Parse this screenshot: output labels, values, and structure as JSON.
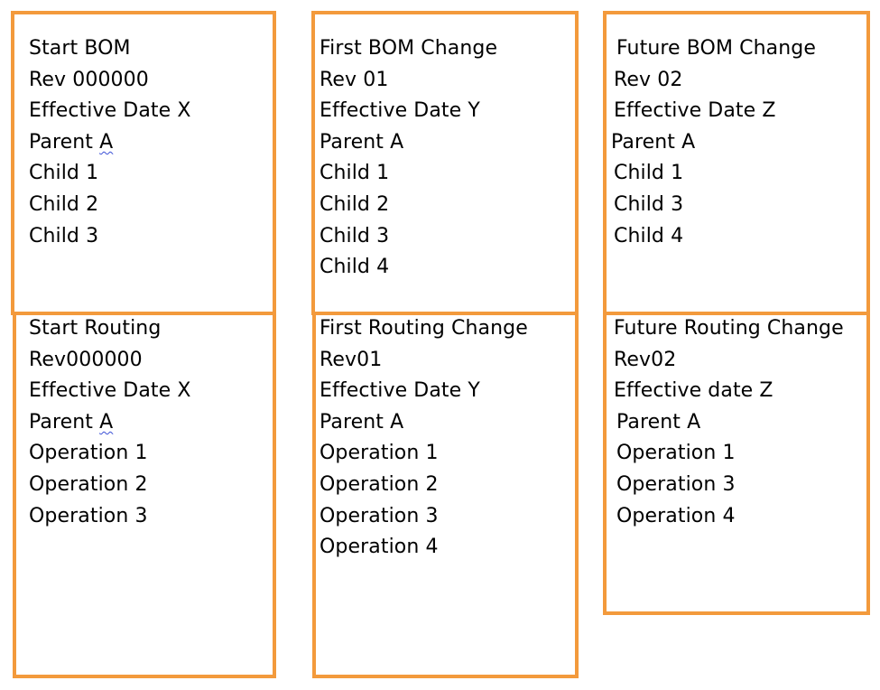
{
  "columns": [
    {
      "bom": {
        "title": "Start BOM",
        "rev": "Rev 000000",
        "effective": "Effective Date X",
        "parent_prefix": "Parent ",
        "parent_name": "A",
        "items": [
          "Child 1",
          "Child 2",
          "Child 3"
        ]
      },
      "routing": {
        "title": "Start Routing",
        "rev": "Rev000000",
        "effective": "Effective Date X",
        "parent_prefix": "Parent ",
        "parent_name": "A",
        "items": [
          "Operation 1",
          "Operation 2",
          "Operation 3"
        ]
      }
    },
    {
      "bom": {
        "title": "First BOM Change",
        "rev": "Rev 01",
        "effective": "Effective Date Y",
        "parent": "Parent A",
        "items": [
          "Child 1",
          "Child 2",
          "Child 3",
          "Child 4"
        ]
      },
      "routing": {
        "title": "First Routing Change",
        "rev": "Rev01",
        "effective": "Effective Date Y",
        "parent": "Parent A",
        "items": [
          "Operation 1",
          "Operation 2",
          "Operation 3",
          "Operation 4"
        ]
      }
    },
    {
      "bom": {
        "title": "Future BOM Change",
        "rev": "Rev 02",
        "effective": "Effective Date Z",
        "parent": "Parent A",
        "items": [
          "Child 1",
          "Child 3",
          "Child 4"
        ]
      },
      "routing": {
        "title": "Future Routing Change",
        "rev": "Rev02",
        "effective": "Effective date Z",
        "parent": "Parent A",
        "items": [
          "Operation 1",
          "Operation 3",
          "Operation 4"
        ]
      }
    }
  ],
  "colors": {
    "border": "#f39a3c",
    "spellcheck": "#3a4fd6"
  }
}
